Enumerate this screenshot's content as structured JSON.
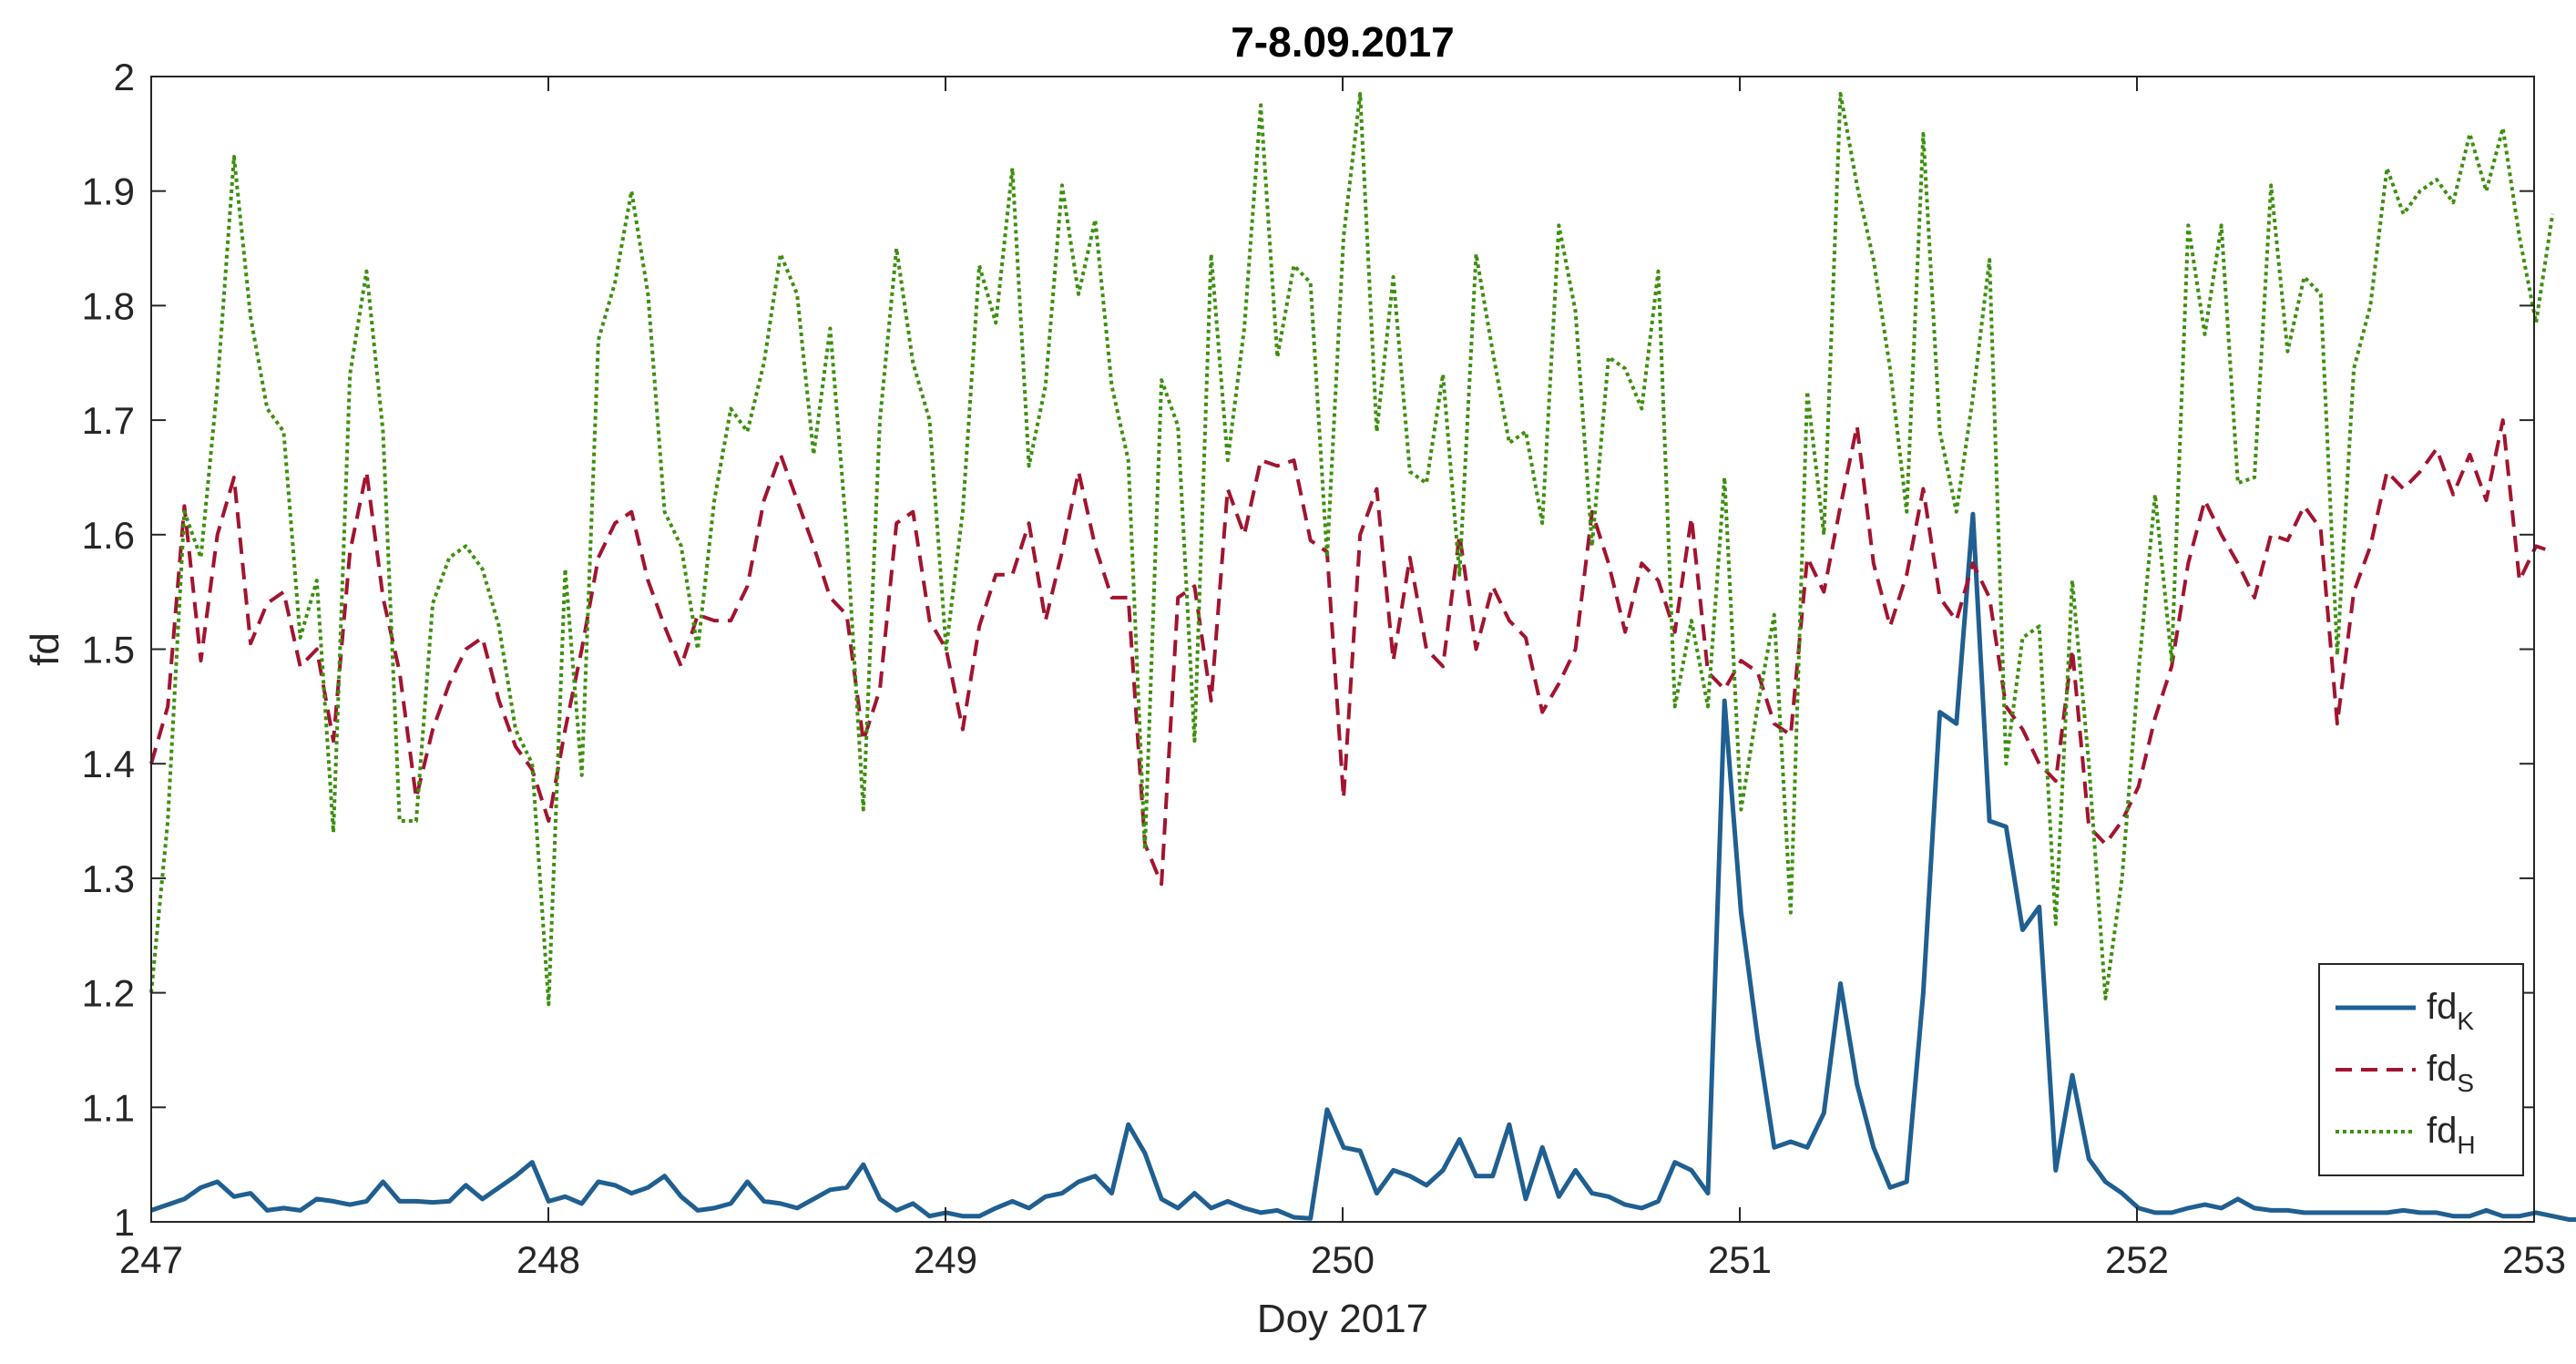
{
  "chart_data": {
    "type": "line",
    "title": "7-8.09.2017",
    "xlabel": "Doy 2017",
    "ylabel": "fd",
    "xlim": [
      247,
      253
    ],
    "ylim": [
      1,
      2
    ],
    "xticks": [
      247,
      248,
      249,
      250,
      251,
      252,
      253
    ],
    "yticks": [
      1,
      1.1,
      1.2,
      1.3,
      1.4,
      1.5,
      1.6,
      1.7,
      1.8,
      1.9,
      2
    ],
    "xtick_labels": [
      "247",
      "248",
      "249",
      "250",
      "251",
      "252",
      "253"
    ],
    "ytick_labels": [
      "1",
      "1.1",
      "1.2",
      "1.3",
      "1.4",
      "1.5",
      "1.6",
      "1.7",
      "1.8",
      "1.9",
      "2"
    ],
    "grid": false,
    "legend_position": "bottom-right",
    "x_start": 247,
    "x_step": 0.0417,
    "series": [
      {
        "name": "fdK",
        "label_main": "fd",
        "label_sub": "K",
        "color": "#1f5f91",
        "style": "solid",
        "values": [
          1.01,
          1.015,
          1.02,
          1.03,
          1.035,
          1.022,
          1.025,
          1.01,
          1.012,
          1.01,
          1.02,
          1.018,
          1.015,
          1.018,
          1.035,
          1.018,
          1.018,
          1.017,
          1.018,
          1.032,
          1.02,
          1.03,
          1.04,
          1.052,
          1.018,
          1.022,
          1.016,
          1.035,
          1.032,
          1.025,
          1.03,
          1.04,
          1.022,
          1.01,
          1.012,
          1.016,
          1.035,
          1.018,
          1.016,
          1.012,
          1.02,
          1.028,
          1.03,
          1.05,
          1.02,
          1.01,
          1.016,
          1.005,
          1.008,
          1.005,
          1.005,
          1.012,
          1.018,
          1.012,
          1.022,
          1.025,
          1.035,
          1.04,
          1.025,
          1.085,
          1.06,
          1.02,
          1.012,
          1.025,
          1.012,
          1.018,
          1.012,
          1.008,
          1.01,
          1.004,
          1.003,
          1.098,
          1.065,
          1.062,
          1.025,
          1.045,
          1.04,
          1.032,
          1.045,
          1.072,
          1.04,
          1.04,
          1.085,
          1.02,
          1.065,
          1.022,
          1.045,
          1.025,
          1.022,
          1.015,
          1.012,
          1.018,
          1.052,
          1.045,
          1.025,
          1.455,
          1.27,
          1.16,
          1.065,
          1.07,
          1.065,
          1.095,
          1.208,
          1.12,
          1.065,
          1.03,
          1.035,
          1.2,
          1.445,
          1.435,
          1.618,
          1.35,
          1.345,
          1.255,
          1.275,
          1.045,
          1.128,
          1.055,
          1.035,
          1.025,
          1.012,
          1.008,
          1.008,
          1.012,
          1.015,
          1.012,
          1.02,
          1.012,
          1.01,
          1.01,
          1.008,
          1.008,
          1.008,
          1.008,
          1.008,
          1.008,
          1.01,
          1.008,
          1.008,
          1.005,
          1.005,
          1.01,
          1.005,
          1.005,
          1.008,
          1.005,
          1.002,
          1.002
        ]
      },
      {
        "name": "fdS",
        "label_main": "fd",
        "label_sub": "S",
        "color": "#a2142f",
        "style": "dashed",
        "values": [
          1.4,
          1.45,
          1.625,
          1.49,
          1.6,
          1.65,
          1.505,
          1.54,
          1.55,
          1.485,
          1.5,
          1.42,
          1.585,
          1.655,
          1.545,
          1.48,
          1.37,
          1.43,
          1.47,
          1.5,
          1.51,
          1.455,
          1.415,
          1.395,
          1.35,
          1.43,
          1.5,
          1.58,
          1.61,
          1.62,
          1.56,
          1.52,
          1.485,
          1.53,
          1.525,
          1.525,
          1.555,
          1.63,
          1.67,
          1.63,
          1.59,
          1.545,
          1.53,
          1.42,
          1.465,
          1.61,
          1.62,
          1.525,
          1.5,
          1.43,
          1.52,
          1.565,
          1.565,
          1.61,
          1.525,
          1.585,
          1.655,
          1.59,
          1.545,
          1.545,
          1.33,
          1.295,
          1.545,
          1.555,
          1.455,
          1.64,
          1.6,
          1.665,
          1.66,
          1.665,
          1.595,
          1.585,
          1.37,
          1.6,
          1.64,
          1.49,
          1.58,
          1.5,
          1.485,
          1.6,
          1.5,
          1.555,
          1.525,
          1.51,
          1.445,
          1.47,
          1.5,
          1.62,
          1.575,
          1.515,
          1.575,
          1.56,
          1.515,
          1.615,
          1.48,
          1.465,
          1.49,
          1.48,
          1.435,
          1.425,
          1.58,
          1.55,
          1.625,
          1.695,
          1.575,
          1.52,
          1.565,
          1.64,
          1.545,
          1.525,
          1.575,
          1.545,
          1.45,
          1.43,
          1.4,
          1.385,
          1.5,
          1.345,
          1.33,
          1.35,
          1.38,
          1.44,
          1.485,
          1.575,
          1.63,
          1.6,
          1.575,
          1.545,
          1.6,
          1.595,
          1.625,
          1.605,
          1.435,
          1.55,
          1.59,
          1.655,
          1.64,
          1.655,
          1.675,
          1.635,
          1.67,
          1.63,
          1.7,
          1.56,
          1.59,
          1.585
        ]
      },
      {
        "name": "fdH",
        "label_main": "fd",
        "label_sub": "H",
        "color": "#3d8f0f",
        "style": "dotted",
        "values": [
          1.2,
          1.35,
          1.62,
          1.58,
          1.73,
          1.93,
          1.79,
          1.71,
          1.69,
          1.51,
          1.56,
          1.34,
          1.74,
          1.83,
          1.69,
          1.35,
          1.35,
          1.54,
          1.58,
          1.59,
          1.57,
          1.52,
          1.43,
          1.4,
          1.19,
          1.57,
          1.39,
          1.77,
          1.82,
          1.9,
          1.81,
          1.62,
          1.59,
          1.5,
          1.63,
          1.71,
          1.69,
          1.75,
          1.845,
          1.81,
          1.67,
          1.78,
          1.6,
          1.36,
          1.7,
          1.85,
          1.75,
          1.7,
          1.5,
          1.62,
          1.835,
          1.785,
          1.92,
          1.66,
          1.73,
          1.905,
          1.81,
          1.875,
          1.73,
          1.665,
          1.325,
          1.735,
          1.695,
          1.42,
          1.845,
          1.665,
          1.78,
          1.975,
          1.755,
          1.835,
          1.82,
          1.58,
          1.86,
          1.985,
          1.69,
          1.825,
          1.655,
          1.645,
          1.74,
          1.565,
          1.845,
          1.76,
          1.68,
          1.69,
          1.61,
          1.87,
          1.795,
          1.59,
          1.755,
          1.745,
          1.71,
          1.83,
          1.45,
          1.525,
          1.45,
          1.65,
          1.36,
          1.45,
          1.53,
          1.27,
          1.725,
          1.6,
          1.985,
          1.905,
          1.84,
          1.745,
          1.62,
          1.95,
          1.69,
          1.62,
          1.72,
          1.84,
          1.4,
          1.51,
          1.52,
          1.26,
          1.56,
          1.4,
          1.195,
          1.3,
          1.48,
          1.635,
          1.49,
          1.87,
          1.775,
          1.87,
          1.645,
          1.65,
          1.905,
          1.76,
          1.825,
          1.81,
          1.495,
          1.745,
          1.8,
          1.92,
          1.88,
          1.9,
          1.91,
          1.89,
          1.95,
          1.9,
          1.955,
          1.86,
          1.785,
          1.88
        ]
      }
    ]
  }
}
